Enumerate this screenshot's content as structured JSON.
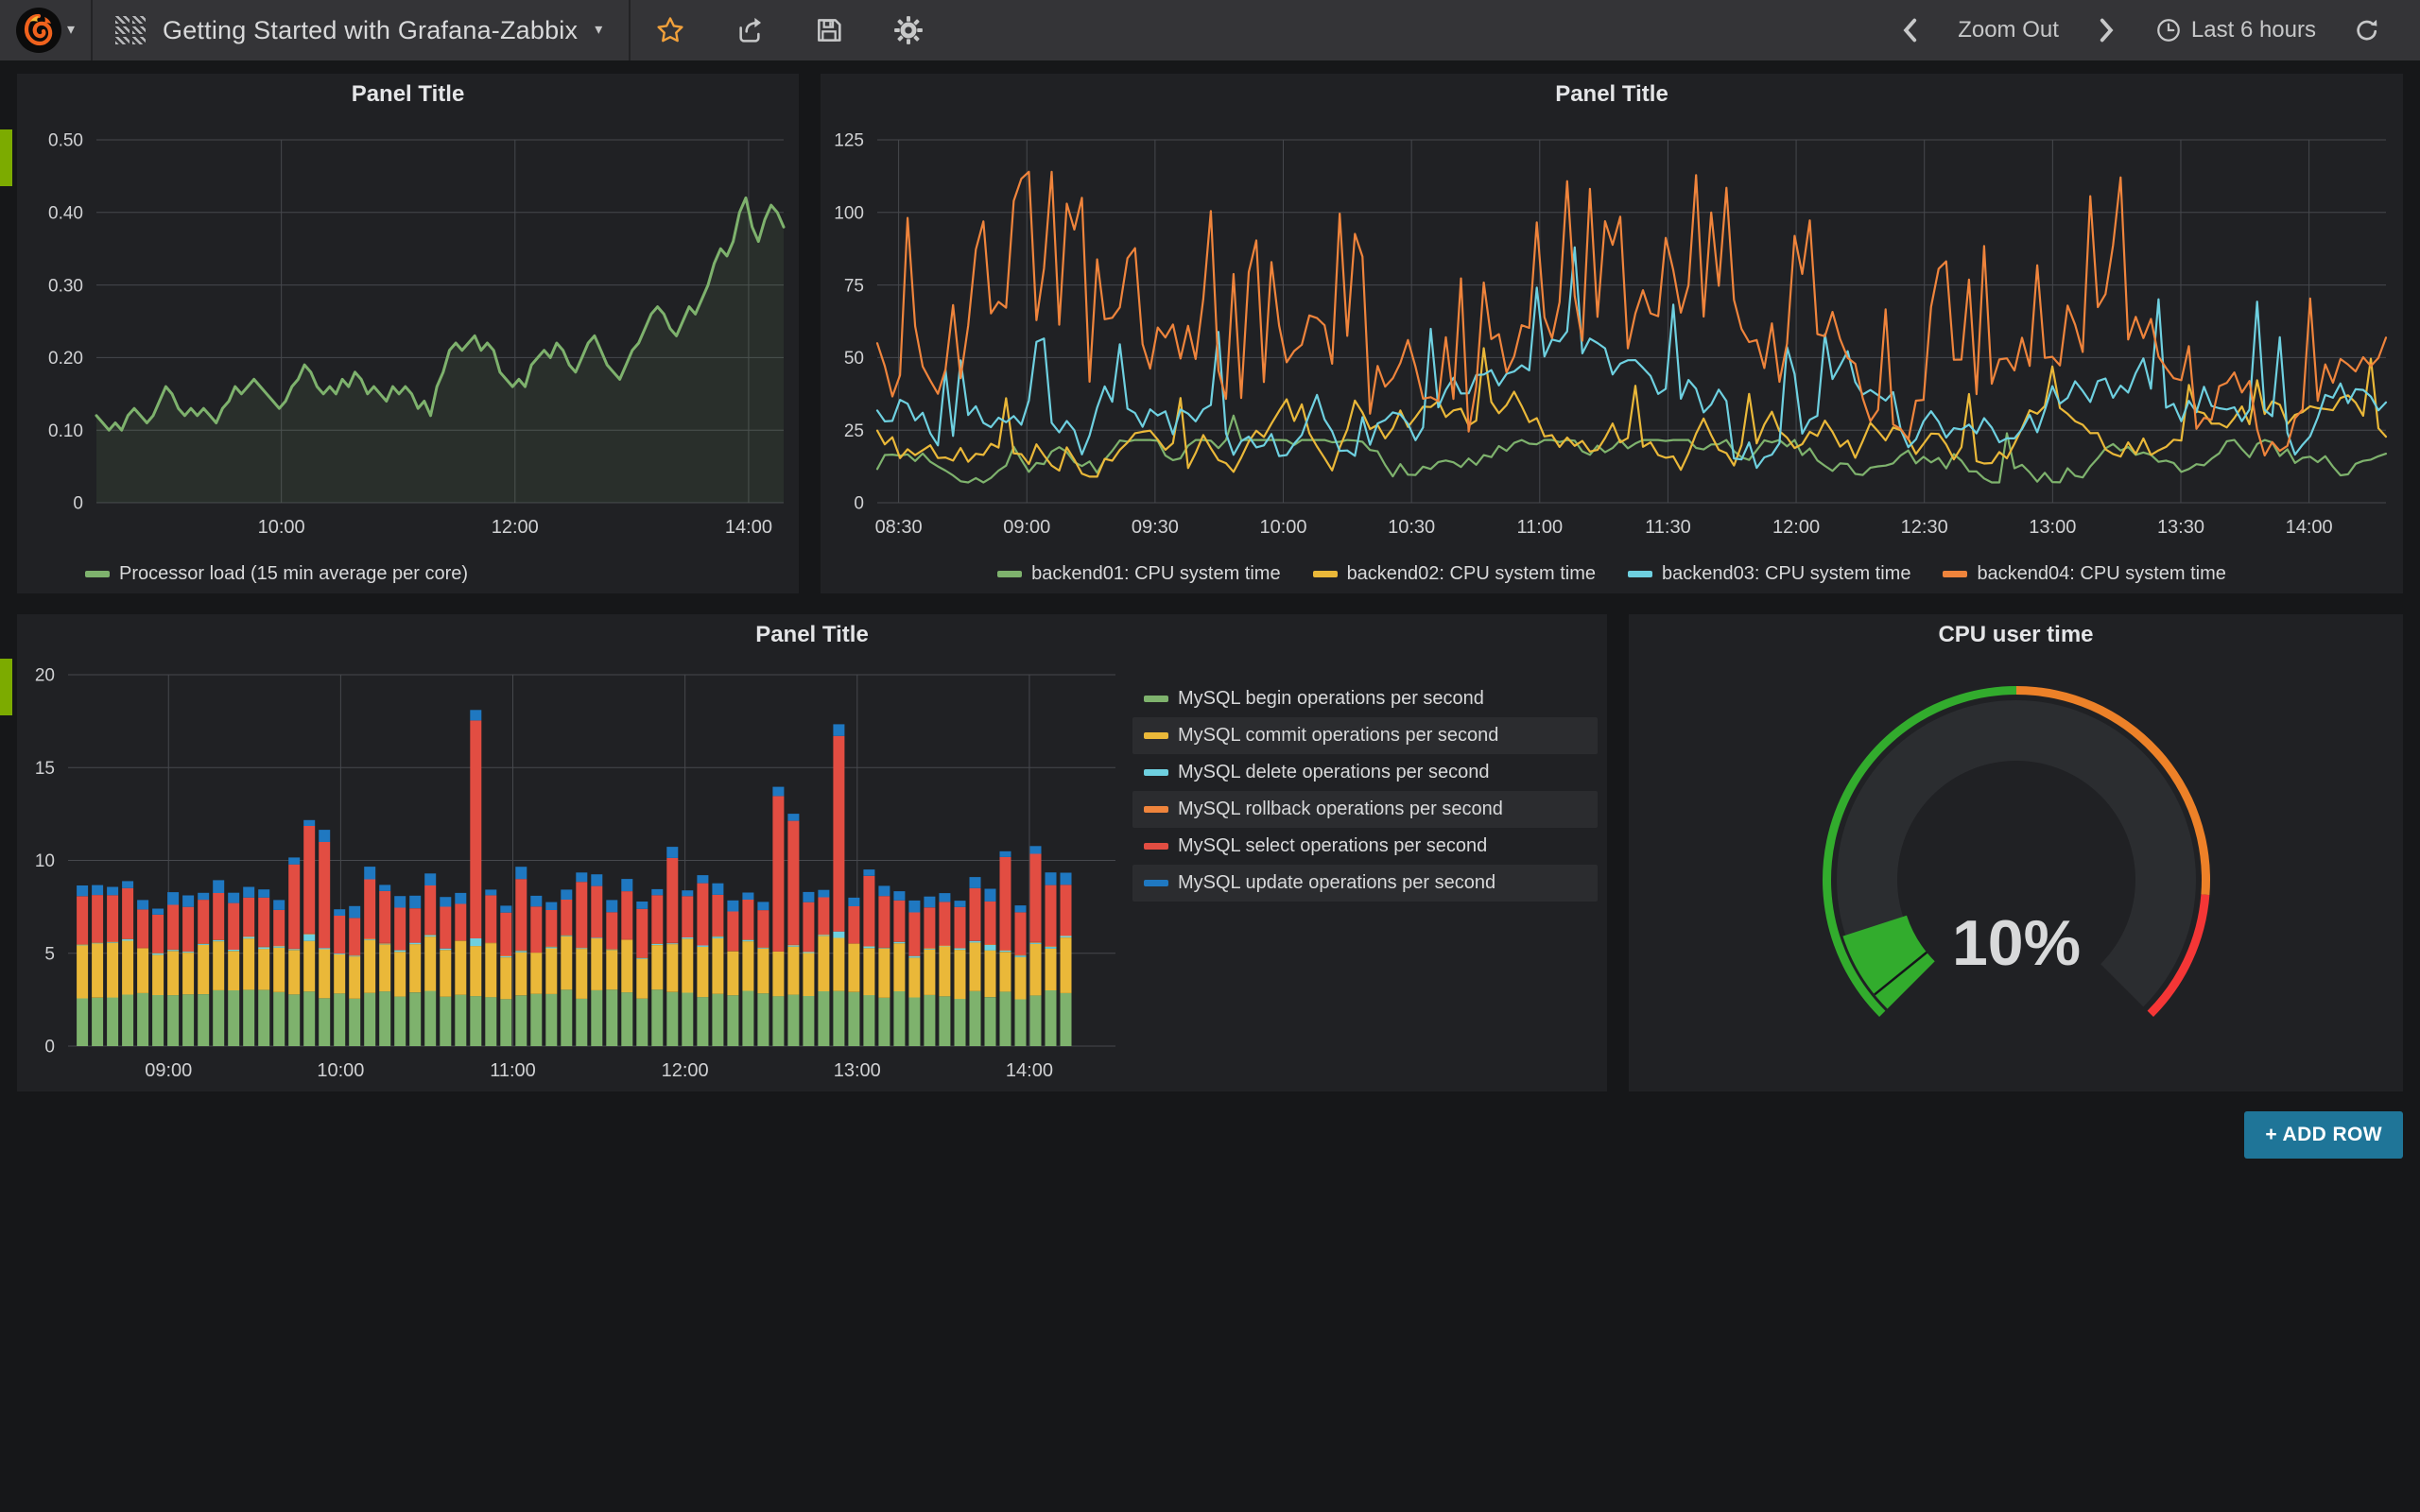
{
  "navbar": {
    "dashboard_title": "Getting Started with Grafana-Zabbix",
    "caret": "▾",
    "zoom_out_label": "Zoom Out",
    "time_range_label": "Last 6 hours",
    "icon_names": [
      "grafana-logo",
      "dashboard-grid",
      "star",
      "share",
      "save",
      "settings-gear",
      "chevron-left",
      "chevron-right",
      "clock",
      "refresh"
    ]
  },
  "add_row_label": "+ ADD ROW",
  "colors": {
    "page_bg": "#161719",
    "panel_bg": "#202124",
    "navbar_bg": "#343437",
    "grid": "#46484d",
    "tick_text": "#d0d1d3",
    "green": "#7EB26D",
    "yellow": "#EAB839",
    "cyan": "#6ED0E0",
    "orange": "#EF843C",
    "red": "#E24D42",
    "blue": "#1F78C1",
    "star_orange": "#F2A13B",
    "row_tab_green": "#7CAB00",
    "add_row_bg": "#1F7598",
    "gauge_green": "#32AC2D",
    "gauge_orange": "#ED8128",
    "gauge_red": "#F53636",
    "gauge_arc_bg": "#2b2d30"
  },
  "chart_data": [
    {
      "type": "line",
      "panel_title": "Panel Title",
      "xlabel": "",
      "ylabel": "",
      "ylim": [
        0,
        0.5
      ],
      "x_domain_minutes": [
        505,
        858
      ],
      "grid": true,
      "legend_position": "bottom-left",
      "y_ticks": [
        {
          "v": 0,
          "label": "0"
        },
        {
          "v": 0.1,
          "label": "0.10"
        },
        {
          "v": 0.2,
          "label": "0.20"
        },
        {
          "v": 0.3,
          "label": "0.30"
        },
        {
          "v": 0.4,
          "label": "0.40"
        },
        {
          "v": 0.5,
          "label": "0.50"
        }
      ],
      "x_ticks": [
        {
          "min": 600,
          "label": "10:00"
        },
        {
          "min": 720,
          "label": "12:00"
        },
        {
          "min": 840,
          "label": "14:00"
        }
      ],
      "series": [
        {
          "name": "Processor load (15 min average per core)",
          "color": "#7EB26D",
          "fill_opacity": 0.1,
          "values": [
            0.12,
            0.11,
            0.1,
            0.11,
            0.1,
            0.12,
            0.13,
            0.12,
            0.11,
            0.12,
            0.14,
            0.16,
            0.15,
            0.13,
            0.12,
            0.13,
            0.12,
            0.13,
            0.12,
            0.11,
            0.13,
            0.14,
            0.16,
            0.15,
            0.16,
            0.17,
            0.16,
            0.15,
            0.14,
            0.13,
            0.14,
            0.16,
            0.17,
            0.19,
            0.18,
            0.16,
            0.15,
            0.16,
            0.15,
            0.17,
            0.16,
            0.18,
            0.17,
            0.15,
            0.16,
            0.15,
            0.14,
            0.16,
            0.15,
            0.16,
            0.15,
            0.13,
            0.14,
            0.12,
            0.16,
            0.18,
            0.21,
            0.22,
            0.21,
            0.22,
            0.23,
            0.21,
            0.22,
            0.21,
            0.18,
            0.17,
            0.16,
            0.17,
            0.16,
            0.19,
            0.2,
            0.21,
            0.2,
            0.22,
            0.21,
            0.19,
            0.18,
            0.2,
            0.22,
            0.23,
            0.21,
            0.19,
            0.18,
            0.17,
            0.19,
            0.21,
            0.22,
            0.24,
            0.26,
            0.27,
            0.26,
            0.24,
            0.23,
            0.25,
            0.27,
            0.26,
            0.28,
            0.3,
            0.33,
            0.35,
            0.34,
            0.36,
            0.4,
            0.42,
            0.38,
            0.36,
            0.39,
            0.41,
            0.4,
            0.38
          ]
        }
      ]
    },
    {
      "type": "line",
      "panel_title": "Panel Title",
      "xlabel": "",
      "ylabel": "",
      "ylim": [
        0,
        125
      ],
      "x_domain_minutes": [
        505,
        858
      ],
      "grid": true,
      "legend_position": "bottom-center",
      "y_ticks": [
        {
          "v": 0,
          "label": "0"
        },
        {
          "v": 25,
          "label": "25"
        },
        {
          "v": 50,
          "label": "50"
        },
        {
          "v": 75,
          "label": "75"
        },
        {
          "v": 100,
          "label": "100"
        },
        {
          "v": 125,
          "label": "125"
        }
      ],
      "x_ticks": [
        {
          "min": 510,
          "label": "08:30"
        },
        {
          "min": 540,
          "label": "09:00"
        },
        {
          "min": 570,
          "label": "09:30"
        },
        {
          "min": 600,
          "label": "10:00"
        },
        {
          "min": 630,
          "label": "10:30"
        },
        {
          "min": 660,
          "label": "11:00"
        },
        {
          "min": 690,
          "label": "11:30"
        },
        {
          "min": 720,
          "label": "12:00"
        },
        {
          "min": 750,
          "label": "12:30"
        },
        {
          "min": 780,
          "label": "13:00"
        },
        {
          "min": 810,
          "label": "13:30"
        },
        {
          "min": 840,
          "label": "14:00"
        }
      ],
      "series": [
        {
          "name": "backend01: CPU system time",
          "color": "#7EB26D",
          "generator": {
            "seed": 7,
            "points": 200,
            "base": 16,
            "walk": 9,
            "min": 7,
            "max": 30,
            "spike_prob": 0.05,
            "spike_gain": 18
          }
        },
        {
          "name": "backend02: CPU system time",
          "color": "#EAB839",
          "generator": {
            "seed": 13,
            "points": 200,
            "base": 24,
            "walk": 13,
            "min": 9,
            "max": 58,
            "spike_prob": 0.1,
            "spike_gain": 26
          }
        },
        {
          "name": "backend03: CPU system time",
          "color": "#6ED0E0",
          "generator": {
            "seed": 21,
            "points": 200,
            "base": 33,
            "walk": 18,
            "min": 12,
            "max": 88,
            "spike_prob": 0.14,
            "spike_gain": 38
          }
        },
        {
          "name": "backend04: CPU system time",
          "color": "#EF843C",
          "generator": {
            "seed": 5,
            "points": 200,
            "base": 50,
            "walk": 26,
            "min": 14,
            "max": 114,
            "spike_prob": 0.32,
            "spike_gain": 55
          }
        }
      ]
    },
    {
      "type": "stacked-bar",
      "panel_title": "Panel Title",
      "xlabel": "",
      "ylabel": "",
      "ylim": [
        0,
        20
      ],
      "x_domain_minutes": [
        505,
        870
      ],
      "grid": true,
      "legend_position": "right",
      "y_ticks": [
        {
          "v": 0,
          "label": "0"
        },
        {
          "v": 5,
          "label": "5"
        },
        {
          "v": 10,
          "label": "10"
        },
        {
          "v": 15,
          "label": "15"
        },
        {
          "v": 20,
          "label": "20"
        }
      ],
      "x_ticks": [
        {
          "min": 540,
          "label": "09:00"
        },
        {
          "min": 600,
          "label": "10:00"
        },
        {
          "min": 660,
          "label": "11:00"
        },
        {
          "min": 720,
          "label": "12:00"
        },
        {
          "min": 780,
          "label": "13:00"
        },
        {
          "min": 840,
          "label": "14:00"
        }
      ],
      "bars": {
        "count": 66,
        "start_min": 508,
        "end_min": 856,
        "jitter_seed": 9
      },
      "series": [
        {
          "name": "MySQL begin operations per second",
          "color": "#7EB26D",
          "base": 2.75,
          "jitter": 0.3,
          "extras": {}
        },
        {
          "name": "MySQL commit operations per second",
          "color": "#EAB839",
          "base": 2.55,
          "jitter": 0.45,
          "extras": {}
        },
        {
          "name": "MySQL delete operations per second",
          "color": "#6ED0E0",
          "base": 0.05,
          "jitter": 0.04,
          "extras": {
            "15": 0.3,
            "26": 0.35,
            "50": 0.3,
            "60": 0.25
          }
        },
        {
          "name": "MySQL rollback operations per second",
          "color": "#EF843C",
          "base": 0.03,
          "jitter": 0.02,
          "extras": {}
        },
        {
          "name": "MySQL select operations per second",
          "color": "#E24D42",
          "base": 2.35,
          "jitter": 0.5,
          "extras": {
            "14": 2.2,
            "15": 3.1,
            "16": 3.6,
            "19": 0.8,
            "26": 9.6,
            "29": 1.5,
            "33": 1.2,
            "39": 2.0,
            "41": 0.8,
            "46": 5.8,
            "47": 4.2,
            "50": 8.6,
            "52": 1.5,
            "61": 2.6,
            "63": 2.5,
            "64": 0.9
          }
        },
        {
          "name": "MySQL update operations per second",
          "color": "#1F78C1",
          "base": 0.5,
          "jitter": 0.2,
          "extras": {}
        }
      ]
    },
    {
      "type": "gauge",
      "panel_title": "CPU user time",
      "value": 10,
      "display": "10%",
      "min": 0,
      "max": 100,
      "thresholds": [
        {
          "to": 50,
          "color": "#32AC2D"
        },
        {
          "to": 85,
          "color": "#ED8128"
        },
        {
          "to": 100,
          "color": "#F53636"
        }
      ]
    }
  ]
}
